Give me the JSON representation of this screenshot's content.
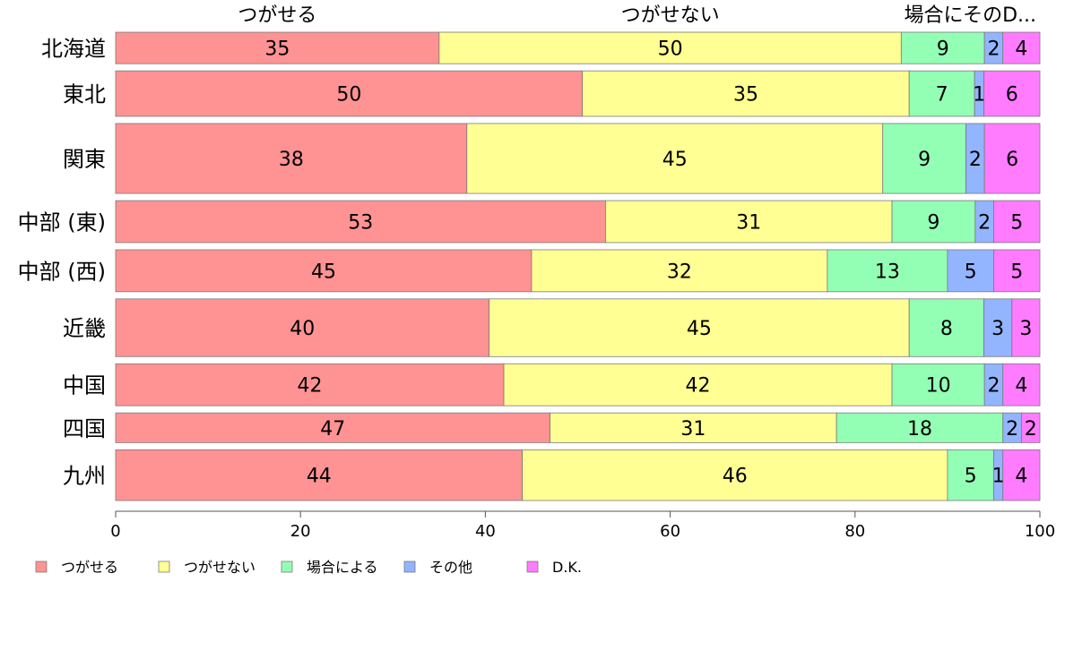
{
  "chart_data": {
    "type": "bar",
    "orientation": "horizontal",
    "stacked": true,
    "categories": [
      "北海道",
      "東北",
      "関東",
      "中部 (東)",
      "中部 (西)",
      "近畿",
      "中国",
      "四国",
      "九州"
    ],
    "category_weights": [
      36,
      52,
      80,
      48,
      48,
      66,
      48,
      34,
      58
    ],
    "series": [
      {
        "name": "つがせる",
        "color": "#ff9393",
        "values": [
          35,
          50,
          38,
          53,
          45,
          40,
          42,
          47,
          44
        ]
      },
      {
        "name": "つがせない",
        "color": "#ffff93",
        "values": [
          50,
          35,
          45,
          31,
          32,
          45,
          42,
          31,
          46
        ]
      },
      {
        "name": "場合による",
        "color": "#93ffb4",
        "values": [
          9,
          7,
          9,
          9,
          13,
          8,
          10,
          18,
          5
        ]
      },
      {
        "name": "その他",
        "color": "#93b4ff",
        "values": [
          2,
          1,
          2,
          2,
          5,
          3,
          2,
          2,
          1
        ]
      },
      {
        "name": "D.K.",
        "color": "#ff7bff",
        "values": [
          4,
          6,
          6,
          5,
          5,
          3,
          4,
          2,
          4
        ]
      }
    ],
    "top_labels": [
      "つがせる",
      "つがせない",
      "場合にそのD..."
    ],
    "xlim": [
      0,
      100
    ],
    "xticks": [
      0,
      20,
      40,
      60,
      80,
      100
    ],
    "grid": false,
    "legend": "bottom"
  }
}
